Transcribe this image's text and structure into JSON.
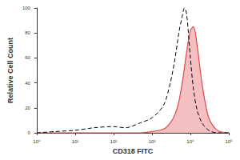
{
  "chart_data": {
    "type": "line",
    "x_label": "CD318 FITC",
    "y_label": "Relative Cell Count",
    "x": [
      1,
      3,
      10,
      30,
      100,
      200,
      500,
      1000,
      2000,
      3000,
      4000,
      5000,
      6000,
      7000,
      8000,
      10000,
      12000,
      15000,
      20000,
      30000,
      50000,
      100000
    ],
    "series": [
      {
        "type": "line",
        "color": "#000000",
        "line_style": "dashed",
        "values": [
          0,
          1,
          2,
          4,
          5,
          4,
          8,
          12,
          22,
          40,
          60,
          80,
          92,
          100,
          95,
          60,
          35,
          18,
          8,
          2,
          0,
          0
        ]
      },
      {
        "type": "area",
        "color": "#e0474c",
        "line_style": "solid",
        "values": [
          0,
          0,
          0,
          0,
          0,
          0,
          0,
          1,
          3,
          8,
          15,
          25,
          38,
          52,
          65,
          82,
          85,
          70,
          40,
          12,
          2,
          0
        ]
      }
    ],
    "log": "x",
    "xlim": [
      1,
      100000
    ],
    "xticks": [
      {
        "value": 1,
        "label": "10⁰"
      },
      {
        "value": 10,
        "label": "10¹"
      },
      {
        "value": 100,
        "label": "10²"
      },
      {
        "value": 1000,
        "label": "10³"
      },
      {
        "value": 10000,
        "label": "10⁴"
      },
      {
        "value": 100000,
        "label": "10⁵"
      }
    ],
    "ylim": [
      0,
      100
    ],
    "yticks": [
      0,
      20,
      40,
      60,
      80,
      100
    ],
    "grid": false
  }
}
